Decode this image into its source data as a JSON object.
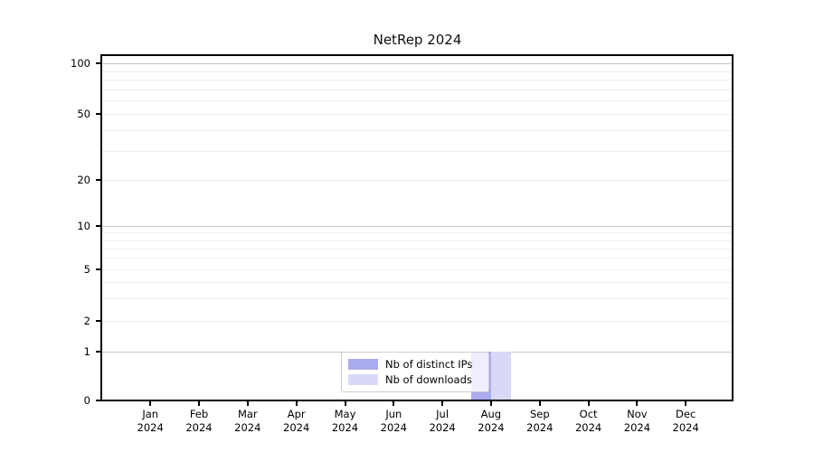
{
  "chart_data": {
    "type": "bar",
    "title": "NetRep 2024",
    "categories": [
      "Jan 2024",
      "Feb 2024",
      "Mar 2024",
      "Apr 2024",
      "May 2024",
      "Jun 2024",
      "Jul 2024",
      "Aug 2024",
      "Sep 2024",
      "Oct 2024",
      "Nov 2024",
      "Dec 2024"
    ],
    "series": [
      {
        "name": "Nb of distinct IPs",
        "color": "#aaaaef",
        "values": [
          0,
          0,
          0,
          0,
          0,
          0,
          0,
          1,
          0,
          0,
          0,
          0
        ]
      },
      {
        "name": "Nb of downloads",
        "color": "#d9d9f7",
        "values": [
          0,
          0,
          0,
          0,
          0,
          0,
          0,
          1,
          0,
          0,
          0,
          0
        ]
      }
    ],
    "yscale": "symlog",
    "ylim": [
      0,
      100
    ],
    "y_ticks": [
      0,
      1,
      2,
      5,
      10,
      20,
      50,
      100
    ],
    "y_major_gridlines": [
      1,
      10,
      100
    ],
    "y_minor_gridlines": [
      2,
      3,
      4,
      5,
      6,
      7,
      8,
      9,
      20,
      30,
      40,
      50,
      60,
      70,
      80,
      90
    ],
    "grid": "horizontal only",
    "legend_position": "lower center, inside plot",
    "colors": {
      "major_grid": "#c8c8c8",
      "minor_grid": "#ececec",
      "axis": "#000000"
    }
  }
}
